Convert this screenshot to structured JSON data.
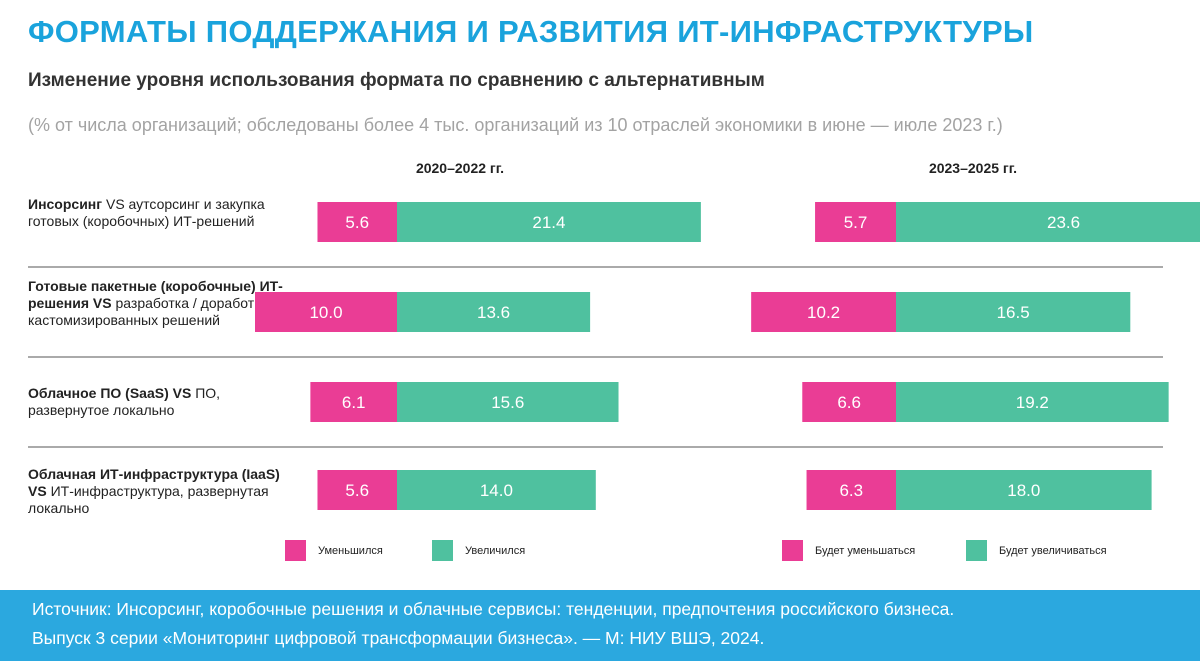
{
  "title": "ФОРМАТЫ ПОДДЕРЖАНИЯ И РАЗВИТИЯ ИТ-ИНФРАСТРУКТУРЫ",
  "subtitle": "Изменение уровня использования формата по сравнению с альтернативным",
  "note": "(% от числа организаций; обследованы более 4 тыс. организаций из 10 отраслей экономики в июне — июле 2023 г.)",
  "colors": {
    "decrease": "#ea3d95",
    "increase": "#4fc19f",
    "title": "#1aa3dc",
    "footer": "#2ba8df"
  },
  "chart_data": {
    "type": "bar",
    "orientation": "horizontal-diverging-stacked",
    "categories": [
      [
        "Инсорсинг",
        " VS аутсорсинг и закупка готовых (коробочных) ИТ-решений"
      ],
      [
        "Готовые пакетные (коробочные) ИТ-решения VS",
        " разработка / доработка кастомизированных решений"
      ],
      [
        "Облачное ПО (SaaS) VS",
        " ПО, развернутое локально"
      ],
      [
        "Облачная ИТ-инфраструктура (IaaS) VS",
        " ИТ-инфраструктура, развернутая локально"
      ]
    ],
    "panels": [
      {
        "period": "2020–2022 гг.",
        "series": [
          {
            "name": "Уменьшился",
            "values": [
              5.6,
              10.0,
              6.1,
              5.6
            ],
            "labels": [
              "5.6",
              "10.0",
              "6.1",
              "5.6"
            ]
          },
          {
            "name": "Увеличился",
            "values": [
              21.4,
              13.6,
              15.6,
              14.0
            ],
            "labels": [
              "21.4",
              "13.6",
              "15.6",
              "14.0"
            ]
          }
        ]
      },
      {
        "period": "2023–2025 гг.",
        "series": [
          {
            "name": "Будет уменьшаться",
            "values": [
              5.7,
              10.2,
              6.6,
              6.3
            ],
            "labels": [
              "5.7",
              "10.2",
              "6.6",
              "6.3"
            ]
          },
          {
            "name": "Будет увеличиваться",
            "values": [
              23.6,
              16.5,
              19.2,
              18.0
            ],
            "labels": [
              "23.6",
              "16.5",
              "19.2",
              "18.0"
            ]
          }
        ]
      }
    ]
  },
  "footer": {
    "line1": "Источник: Инсорсинг, коробочные решения и облачные сервисы: тенденции, предпочтения российского бизнеса.",
    "line2": "Выпуск 3 серии «Мониторинг цифровой трансформации бизнеса». — М: НИУ ВШЭ, 2024."
  }
}
